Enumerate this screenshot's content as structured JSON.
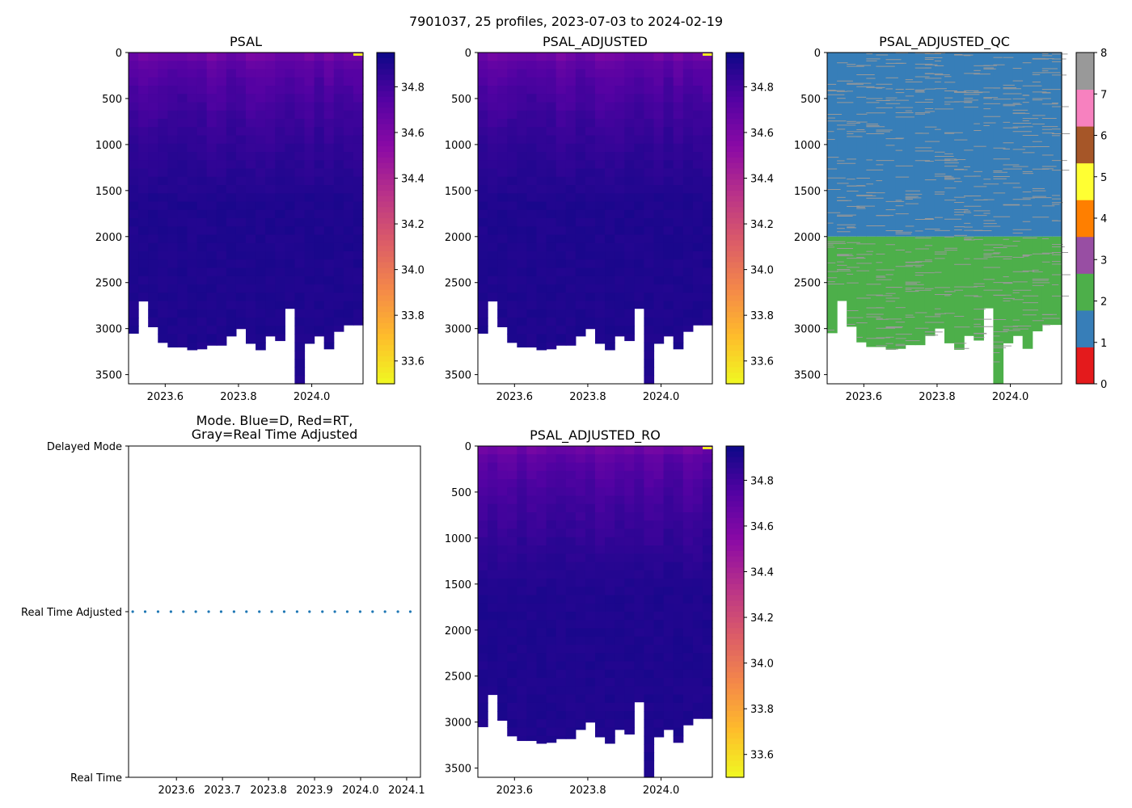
{
  "figure": {
    "suptitle": "7901037, 25 profiles, 2023-07-03 to 2024-02-19"
  },
  "chart_data": [
    {
      "type": "heatmap",
      "id": "psal",
      "title": "PSAL",
      "xlim": [
        2023.5,
        2024.14
      ],
      "ylim": [
        3600,
        0
      ],
      "xticks": [
        2023.6,
        2023.8,
        2024.0
      ],
      "xtick_labels": [
        "2023.6",
        "2023.8",
        "2024.0"
      ],
      "yticks": [
        0,
        500,
        1000,
        1500,
        2000,
        2500,
        3000,
        3500
      ],
      "ytick_labels": [
        "0",
        "500",
        "1000",
        "1500",
        "2000",
        "2500",
        "3000",
        "3500"
      ],
      "colormap": "plasma_r",
      "crange": [
        33.5,
        34.95
      ],
      "cticks": [
        33.6,
        33.8,
        34.0,
        34.2,
        34.4,
        34.6,
        34.8
      ],
      "ctick_labels": [
        "33.6",
        "33.8",
        "34.0",
        "34.2",
        "34.4",
        "34.6",
        "34.8"
      ],
      "surface_value": 34.65,
      "deep_value": 34.9,
      "anomaly_value": 33.55
    },
    {
      "type": "heatmap",
      "id": "psal-adjusted",
      "title": "PSAL_ADJUSTED",
      "xlim": [
        2023.5,
        2024.14
      ],
      "ylim": [
        3600,
        0
      ],
      "xticks": [
        2023.6,
        2023.8,
        2024.0
      ],
      "xtick_labels": [
        "2023.6",
        "2023.8",
        "2024.0"
      ],
      "yticks": [
        0,
        500,
        1000,
        1500,
        2000,
        2500,
        3000,
        3500
      ],
      "ytick_labels": [
        "0",
        "500",
        "1000",
        "1500",
        "2000",
        "2500",
        "3000",
        "3500"
      ],
      "colormap": "plasma_r",
      "crange": [
        33.5,
        34.95
      ],
      "cticks": [
        33.6,
        33.8,
        34.0,
        34.2,
        34.4,
        34.6,
        34.8
      ],
      "ctick_labels": [
        "33.6",
        "33.8",
        "34.0",
        "34.2",
        "34.4",
        "34.6",
        "34.8"
      ],
      "surface_value": 34.65,
      "deep_value": 34.9,
      "anomaly_value": 33.55
    },
    {
      "type": "heatmap",
      "id": "psal-adjusted-qc",
      "title": "PSAL_ADJUSTED_QC",
      "xlim": [
        2023.5,
        2024.14
      ],
      "ylim": [
        3600,
        0
      ],
      "xticks": [
        2023.6,
        2023.8,
        2024.0
      ],
      "xtick_labels": [
        "2023.6",
        "2023.8",
        "2024.0"
      ],
      "yticks": [
        0,
        500,
        1000,
        1500,
        2000,
        2500,
        3000,
        3500
      ],
      "ytick_labels": [
        "0",
        "500",
        "1000",
        "1500",
        "2000",
        "2500",
        "3000",
        "3500"
      ],
      "qc_boundary_depth": 2000,
      "qc_upper_flag": 1,
      "qc_lower_flag": 2,
      "qc_line_flag": 8,
      "qc_colors": [
        "#e41a1c",
        "#377eb8",
        "#4daf4a",
        "#984ea3",
        "#ff7f00",
        "#ffff33",
        "#a65628",
        "#f781bf",
        "#999999"
      ],
      "cticks": [
        0,
        1,
        2,
        3,
        4,
        5,
        6,
        7,
        8
      ],
      "ctick_labels": [
        "0",
        "1",
        "2",
        "3",
        "4",
        "5",
        "6",
        "7",
        "8"
      ]
    },
    {
      "type": "scatter",
      "id": "mode",
      "title_lines": [
        "Mode. Blue=D, Red=RT,",
        "Gray=Real Time Adjusted"
      ],
      "xlim": [
        2023.496,
        2024.13
      ],
      "ylim": [
        0,
        2
      ],
      "xticks": [
        2023.6,
        2023.7,
        2023.8,
        2023.9,
        2024.0,
        2024.1
      ],
      "xtick_labels": [
        "2023.6",
        "2023.7",
        "2023.8",
        "2023.9",
        "2024.0",
        "2024.1"
      ],
      "yticks": [
        2,
        1,
        0
      ],
      "ytick_labels": [
        "Delayed Mode",
        "Real Time Adjusted",
        "Real Time"
      ],
      "series": [
        {
          "name": "Real Time Adjusted",
          "color": "#1f77b4",
          "y": 1
        }
      ]
    },
    {
      "type": "heatmap",
      "id": "psal-adjusted-ro",
      "title": "PSAL_ADJUSTED_RO",
      "xlim": [
        2023.5,
        2024.14
      ],
      "ylim": [
        3600,
        0
      ],
      "xticks": [
        2023.6,
        2023.8,
        2024.0
      ],
      "xtick_labels": [
        "2023.6",
        "2023.8",
        "2024.0"
      ],
      "yticks": [
        0,
        500,
        1000,
        1500,
        2000,
        2500,
        3000,
        3500
      ],
      "ytick_labels": [
        "0",
        "500",
        "1000",
        "1500",
        "2000",
        "2500",
        "3000",
        "3500"
      ],
      "colormap": "plasma_r",
      "crange": [
        33.5,
        34.95
      ],
      "cticks": [
        33.6,
        33.8,
        34.0,
        34.2,
        34.4,
        34.6,
        34.8
      ],
      "ctick_labels": [
        "33.6",
        "33.8",
        "34.0",
        "34.2",
        "34.4",
        "34.6",
        "34.8"
      ],
      "surface_value": 34.65,
      "deep_value": 34.9,
      "anomaly_value": 33.55
    }
  ],
  "profiles": {
    "count": 25,
    "times": [
      2023.505,
      2023.532,
      2023.56,
      2023.588,
      2023.615,
      2023.642,
      2023.67,
      2023.697,
      2023.725,
      2023.752,
      2023.78,
      2023.807,
      2023.834,
      2023.862,
      2023.889,
      2023.917,
      2023.944,
      2023.971,
      2023.999,
      2024.026,
      2024.053,
      2024.081,
      2024.108,
      2024.135,
      2024.13
    ],
    "max_depths": [
      3050,
      2700,
      2980,
      3150,
      3200,
      3200,
      3230,
      3220,
      3180,
      3180,
      3080,
      3000,
      3160,
      3230,
      3080,
      3130,
      2780,
      3600,
      3160,
      3080,
      3220,
      3030,
      2960,
      2960,
      2960
    ]
  }
}
